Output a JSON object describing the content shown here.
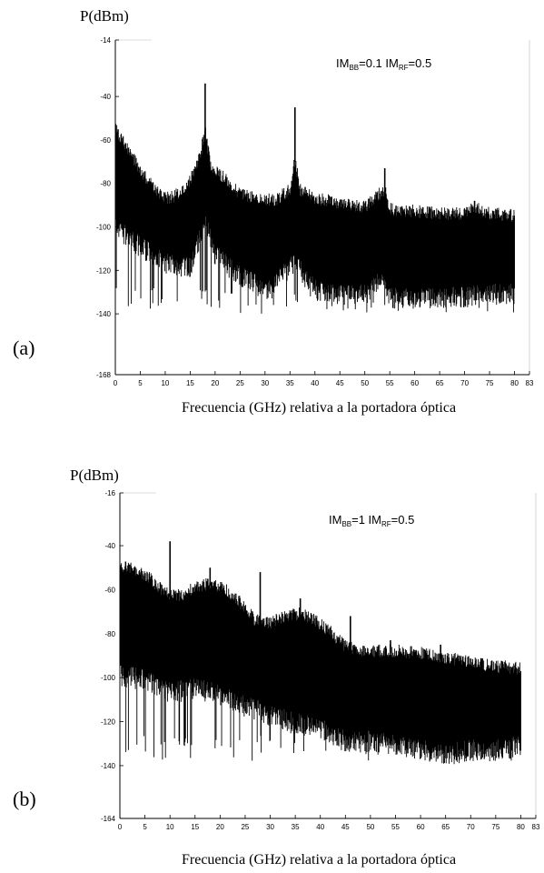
{
  "chart_data": [
    {
      "panel": "(a)",
      "type": "line",
      "ylabel": "P(dBm)",
      "xlabel": "Frecuencia (GHz) relativa a la portadora óptica",
      "annotation": {
        "prefix1": "IM",
        "sub1": "BB",
        "mid": "=0.1 IM",
        "sub2": "RF",
        "suffix": "=0.5"
      },
      "xlim": [
        0,
        83
      ],
      "ylim": [
        -168,
        -14
      ],
      "xticks": [
        "0",
        "5",
        "10",
        "15",
        "20",
        "25",
        "30",
        "35",
        "40",
        "45",
        "50",
        "55",
        "60",
        "65",
        "70",
        "75",
        "80",
        "83"
      ],
      "yticks": [
        -14,
        -40,
        -60,
        -80,
        -100,
        -120,
        -140,
        -168
      ],
      "color": "#000000",
      "series": [
        {
          "envelope_top": {
            "x": [
              0,
              2,
              5,
              8,
              10,
              12,
              15,
              17,
              18,
              19,
              21,
              25,
              28,
              32,
              35,
              36,
              37,
              40,
              45,
              50,
              54,
              55,
              60,
              65,
              70,
              72,
              75,
              80
            ],
            "y": [
              -56,
              -64,
              -75,
              -84,
              -88,
              -87,
              -80,
              -68,
              -57,
              -72,
              -77,
              -86,
              -88,
              -89,
              -84,
              -70,
              -84,
              -88,
              -90,
              -92,
              -84,
              -93,
              -94,
              -95,
              -95,
              -92,
              -95,
              -96
            ]
          },
          "envelope_bottom": {
            "x": [
              0,
              5,
              10,
              15,
              18,
              20,
              25,
              30,
              36,
              40,
              45,
              50,
              54,
              55,
              60,
              65,
              70,
              75,
              80
            ],
            "y": [
              -96,
              -104,
              -112,
              -114,
              -92,
              -108,
              -118,
              -124,
              -112,
              -124,
              -126,
              -126,
              -118,
              -128,
              -128,
              -128,
              -127,
              -126,
              -126
            ]
          },
          "peaks": [
            {
              "x": 18,
              "y": -34
            },
            {
              "x": 36,
              "y": -45
            },
            {
              "x": 54,
              "y": -73
            },
            {
              "x": 72,
              "y": -88
            }
          ],
          "noise_floor": -140
        }
      ]
    },
    {
      "panel": "(b)",
      "type": "line",
      "ylabel": "P(dBm)",
      "xlabel": "Frecuencia (GHz) relativa a la portadora óptica",
      "annotation": {
        "prefix1": "IM",
        "sub1": "BB",
        "mid": "=1  IM",
        "sub2": "RF",
        "suffix": "=0.5"
      },
      "xlim": [
        0,
        83
      ],
      "ylim": [
        -164,
        -16
      ],
      "xticks": [
        "0",
        "5",
        "10",
        "15",
        "20",
        "25",
        "30",
        "35",
        "40",
        "45",
        "50",
        "55",
        "60",
        "65",
        "70",
        "75",
        "80",
        "83"
      ],
      "yticks": [
        -16,
        -40,
        -60,
        -80,
        -100,
        -120,
        -140,
        -164
      ],
      "color": "#000000",
      "series": [
        {
          "envelope_top": {
            "x": [
              0,
              3,
              6,
              9,
              12,
              15,
              18,
              21,
              24,
              27,
              30,
              33,
              36,
              39,
              42,
              45,
              48,
              51,
              55,
              60,
              65,
              70,
              75,
              80
            ],
            "y": [
              -50,
              -52,
              -56,
              -63,
              -64,
              -60,
              -58,
              -61,
              -67,
              -75,
              -76,
              -73,
              -72,
              -75,
              -80,
              -87,
              -89,
              -89,
              -89,
              -90,
              -92,
              -94,
              -96,
              -97
            ]
          },
          "envelope_bottom": {
            "x": [
              0,
              5,
              10,
              15,
              20,
              25,
              30,
              35,
              40,
              45,
              50,
              55,
              60,
              65,
              70,
              75,
              80
            ],
            "y": [
              -94,
              -96,
              -102,
              -100,
              -103,
              -108,
              -112,
              -116,
              -118,
              -124,
              -124,
              -126,
              -128,
              -130,
              -128,
              -128,
              -126
            ]
          },
          "peaks": [
            {
              "x": 10,
              "y": -38
            },
            {
              "x": 18,
              "y": -50
            },
            {
              "x": 28,
              "y": -52
            },
            {
              "x": 36,
              "y": -64
            },
            {
              "x": 46,
              "y": -72
            },
            {
              "x": 54,
              "y": -83
            },
            {
              "x": 64,
              "y": -85
            }
          ],
          "noise_floor": -138
        }
      ]
    }
  ]
}
